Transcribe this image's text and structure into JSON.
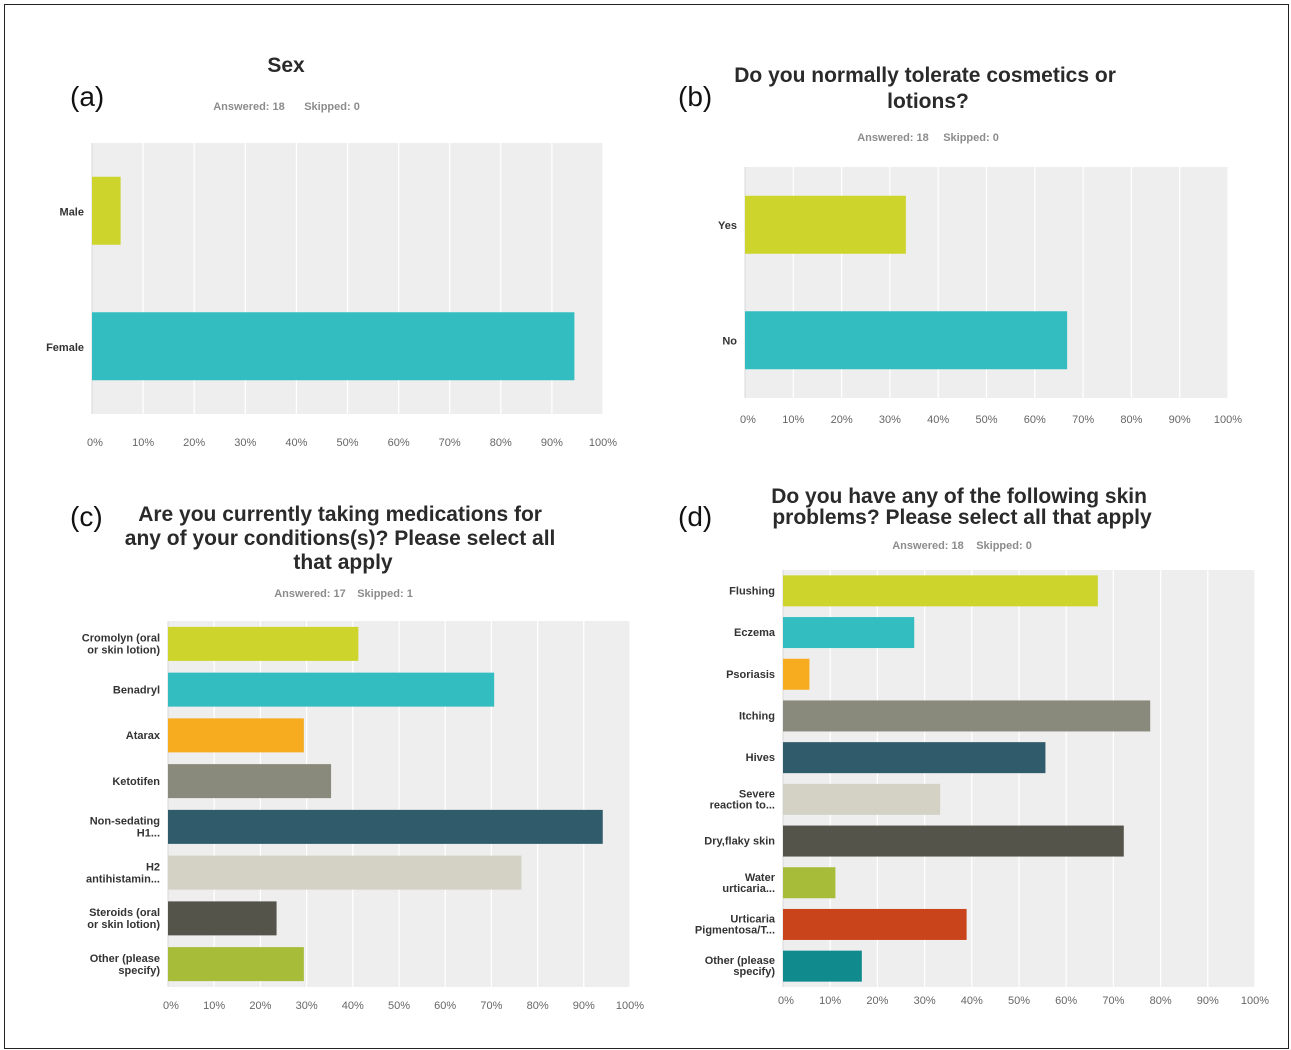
{
  "chart_data": [
    {
      "panel": "(a)",
      "type": "bar",
      "orientation": "horizontal",
      "title": "Sex",
      "answered": "Answered: 18",
      "skipped": "Skipped: 0",
      "categories": [
        "Male",
        "Female"
      ],
      "values": [
        5.6,
        94.4
      ],
      "colors": [
        "#cdd42b",
        "#33bdc1"
      ],
      "xlim": [
        0,
        100
      ],
      "ticks": [
        "0%",
        "10%",
        "20%",
        "30%",
        "40%",
        "50%",
        "60%",
        "70%",
        "80%",
        "90%",
        "100%"
      ]
    },
    {
      "panel": "(b)",
      "type": "bar",
      "orientation": "horizontal",
      "title": "Do you normally tolerate cosmetics or lotions?",
      "answered": "Answered: 18",
      "skipped": "Skipped: 0",
      "categories": [
        "Yes",
        "No"
      ],
      "values": [
        33.3,
        66.7
      ],
      "colors": [
        "#cdd42b",
        "#33bdc1"
      ],
      "xlim": [
        0,
        100
      ],
      "ticks": [
        "0%",
        "10%",
        "20%",
        "30%",
        "40%",
        "50%",
        "60%",
        "70%",
        "80%",
        "90%",
        "100%"
      ]
    },
    {
      "panel": "(c)",
      "type": "bar",
      "orientation": "horizontal",
      "title": "Are you currently taking medications for any of your conditions(s)? Please select all that apply",
      "answered": "Answered: 17",
      "skipped": "Skipped: 1",
      "categories": [
        "Cromolyn (oral or skin lotion)",
        "Benadryl",
        "Atarax",
        "Ketotifen",
        "Non-sedating H1...",
        "H2 antihistamin...",
        "Steroids (oral or skin lotion)",
        "Other (please specify)"
      ],
      "values": [
        41.2,
        70.6,
        29.4,
        35.3,
        94.1,
        76.5,
        23.5,
        29.4
      ],
      "colors": [
        "#cdd42b",
        "#33bdc1",
        "#f6ac1e",
        "#898a7c",
        "#2f5b6a",
        "#d3d2c5",
        "#55544a",
        "#a7bc38"
      ],
      "xlim": [
        0,
        100
      ],
      "ticks": [
        "0%",
        "10%",
        "20%",
        "30%",
        "40%",
        "50%",
        "60%",
        "70%",
        "80%",
        "90%",
        "100%"
      ]
    },
    {
      "panel": "(d)",
      "type": "bar",
      "orientation": "horizontal",
      "title": "Do you have any of the following skin problems? Please select all that apply",
      "answered": "Answered: 18",
      "skipped": "Skipped: 0",
      "categories": [
        "Flushing",
        "Eczema",
        "Psoriasis",
        "Itching",
        "Hives",
        "Severe reaction to...",
        "Dry,flaky skin",
        "Water urticaria...",
        "Urticaria Pigmentosa/T...",
        "Other (please specify)"
      ],
      "values": [
        66.7,
        27.8,
        5.6,
        77.8,
        55.6,
        33.3,
        72.2,
        11.1,
        38.9,
        16.7
      ],
      "colors": [
        "#cdd42b",
        "#33bdc1",
        "#f6ac1e",
        "#898a7c",
        "#2f5b6a",
        "#d3d2c5",
        "#55544a",
        "#a7bc38",
        "#c9431b",
        "#118a8e"
      ],
      "xlim": [
        0,
        100
      ],
      "ticks": [
        "0%",
        "10%",
        "20%",
        "30%",
        "40%",
        "50%",
        "60%",
        "70%",
        "80%",
        "90%",
        "100%"
      ]
    }
  ],
  "styles": {
    "plot_bg": "#eeeeee",
    "grid": "#ffffff"
  }
}
